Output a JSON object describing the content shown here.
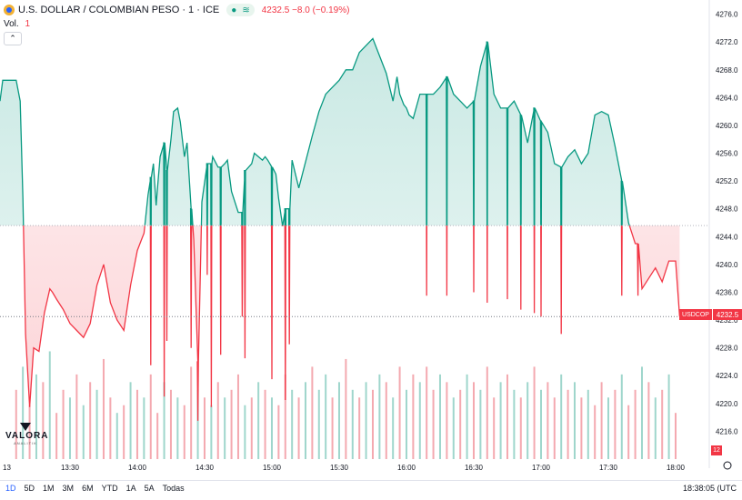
{
  "header": {
    "symbol": "U.S. DOLLAR / COLOMBIAN PESO · 1 · ICE",
    "quote": "4232.5 −8.0 (−0.19%)",
    "vol_label": "Vol.",
    "vol_value": "1",
    "collapse_glyph": "⌃"
  },
  "logo": {
    "brand": "VALORA",
    "sub": "ANALITIK"
  },
  "price_tag": {
    "symbol": "USDCOP",
    "value": "4232.5"
  },
  "volume_tag": "12",
  "bottom_bar": {
    "ranges": [
      "1D",
      "5D",
      "1M",
      "3M",
      "6M",
      "YTD",
      "1A",
      "5A",
      "Todas"
    ],
    "active": "1D",
    "clock": "18:38:05 (UTC"
  },
  "colors": {
    "up": "#089981",
    "down": "#f23645",
    "vol_up": "#9fd6cc",
    "vol_down": "#f4a9b0"
  },
  "chart_data": {
    "type": "area",
    "baseline": 4245.6,
    "ylim": [
      4212,
      4277
    ],
    "yticks": [
      4276,
      4272,
      4268,
      4264,
      4260,
      4256,
      4252,
      4248,
      4244,
      4240,
      4236,
      4232,
      4228,
      4224,
      4220,
      4216
    ],
    "y_tick_labels": [
      "4276.0",
      "4272.0",
      "4268.0",
      "4264.0",
      "4260.0",
      "4256.0",
      "4252.0",
      "4248.0",
      "4244.0",
      "4240.0",
      "4236.0",
      "4232.0",
      "4228.0",
      "4224.0",
      "4220.0",
      "4216.0"
    ],
    "xlim": [
      12.98,
      18.25
    ],
    "x_ticks": [
      12.98,
      13.5,
      14.0,
      14.5,
      15.0,
      15.5,
      16.0,
      16.5,
      17.0,
      17.5,
      18.0
    ],
    "x_tick_labels": [
      "13",
      "13:30",
      "14:00",
      "14:30",
      "15:00",
      "15:30",
      "16:00",
      "16:30",
      "17:00",
      "17:30",
      "18:00"
    ],
    "last_price": 4232.5,
    "series": [
      {
        "x": [
          12.98,
          13.0,
          13.04,
          13.1,
          13.13,
          13.15,
          13.17,
          13.2,
          13.23,
          13.27,
          13.31,
          13.35,
          13.37,
          13.4,
          13.45,
          13.5,
          13.55,
          13.6,
          13.65,
          13.7,
          13.75,
          13.8,
          13.85,
          13.9,
          13.95,
          14.0,
          14.03,
          14.05,
          14.08,
          14.1,
          14.12,
          14.14,
          14.15,
          14.17,
          14.2,
          14.22,
          14.25,
          14.27,
          14.3,
          14.32,
          14.35,
          14.37,
          14.4,
          14.42,
          14.45,
          14.48,
          14.52,
          14.56,
          14.6,
          14.65,
          14.67,
          14.7,
          14.75,
          14.8,
          14.85,
          14.87,
          14.9,
          14.93,
          14.95,
          14.97,
          15.0,
          15.03,
          15.05,
          15.08,
          15.1,
          15.15,
          15.2,
          15.3,
          15.35,
          15.4,
          15.45,
          15.5,
          15.55,
          15.6,
          15.65,
          15.7,
          15.75,
          15.8,
          15.85,
          15.9,
          15.93,
          15.95,
          15.98,
          16.0,
          16.02,
          16.05,
          16.1,
          16.15,
          16.2,
          16.25,
          16.3,
          16.35,
          16.4,
          16.45,
          16.5,
          16.55,
          16.6,
          16.65,
          16.7,
          16.75,
          16.8,
          16.85,
          16.9,
          16.95,
          17.0,
          17.05,
          17.1,
          17.15,
          17.2,
          17.25,
          17.3,
          17.35,
          17.4,
          17.45,
          17.5,
          17.55,
          17.6,
          17.65,
          17.7,
          17.75,
          17.8,
          17.85,
          17.9,
          17.95,
          18.0,
          18.03
        ],
        "y": [
          4263.5,
          4266.5,
          4266.5,
          4266.5,
          4263.5,
          4249.5,
          4230,
          4219.5,
          4228,
          4227.5,
          4233,
          4236.5,
          4236,
          4235,
          4233.5,
          4231.5,
          4230.5,
          4229.5,
          4231.5,
          4237,
          4240,
          4234.5,
          4232,
          4230.5,
          4237,
          4242,
          4243.5,
          4244.5,
          4250,
          4252.5,
          4254.5,
          4248.5,
          4251,
          4255.5,
          4257.5,
          4253.5,
          4258,
          4262,
          4262.5,
          4260.5,
          4255.5,
          4257.5,
          4248,
          4243.5,
          4226,
          4249,
          4254.5,
          4255.5,
          4254,
          4254.5,
          4255,
          4250.5,
          4247.5,
          4253.5,
          4254.5,
          4256,
          4255.5,
          4255,
          4255.5,
          4255,
          4254,
          4253,
          4249.5,
          4245.5,
          4248,
          4255,
          4251,
          4258.5,
          4262,
          4264.5,
          4265.5,
          4266.5,
          4268,
          4268,
          4270.5,
          4271.5,
          4272.5,
          4270,
          4267.5,
          4263.5,
          4267,
          4264.5,
          4263,
          4262.5,
          4261.5,
          4261,
          4264.5,
          4264.5,
          4264.5,
          4265.5,
          4267,
          4264.5,
          4263.5,
          4262.5,
          4263.5,
          4268.5,
          4272,
          4264.5,
          4262.5,
          4262.5,
          4263.5,
          4261.5,
          4257.5,
          4262.5,
          4260.5,
          4259,
          4254.5,
          4254,
          4255.5,
          4256.5,
          4254.5,
          4256,
          4261.5,
          4262,
          4261.5,
          4257,
          4252,
          4246,
          4243,
          4236.5,
          4238,
          4239.5,
          4237.5,
          4240.5,
          4240.5,
          4232.5
        ],
        "dips": [
          {
            "x": 14.1,
            "y": 4225.5
          },
          {
            "x": 14.2,
            "y": 4221
          },
          {
            "x": 14.22,
            "y": 4229
          },
          {
            "x": 14.4,
            "y": 4228
          },
          {
            "x": 14.45,
            "y": 4217.5
          },
          {
            "x": 14.52,
            "y": 4238.5
          },
          {
            "x": 14.55,
            "y": 4219.5
          },
          {
            "x": 14.62,
            "y": 4227
          },
          {
            "x": 14.78,
            "y": 4232.5
          },
          {
            "x": 14.8,
            "y": 4226.5
          },
          {
            "x": 15.0,
            "y": 4223.5
          },
          {
            "x": 15.1,
            "y": 4220.5
          },
          {
            "x": 15.13,
            "y": 4228.5
          },
          {
            "x": 16.15,
            "y": 4235.5
          },
          {
            "x": 16.3,
            "y": 4235.5
          },
          {
            "x": 16.5,
            "y": 4236
          },
          {
            "x": 16.6,
            "y": 4234.5
          },
          {
            "x": 16.75,
            "y": 4235
          },
          {
            "x": 16.85,
            "y": 4233.5
          },
          {
            "x": 16.95,
            "y": 4233
          },
          {
            "x": 17.0,
            "y": 4232.5
          },
          {
            "x": 17.15,
            "y": 4230
          },
          {
            "x": 17.6,
            "y": 4235.5
          },
          {
            "x": 17.72,
            "y": 4235.5
          }
        ]
      }
    ],
    "volume": {
      "x": [
        13.1,
        13.15,
        13.2,
        13.25,
        13.3,
        13.35,
        13.4,
        13.45,
        13.5,
        13.55,
        13.6,
        13.65,
        13.7,
        13.75,
        13.8,
        13.85,
        13.9,
        13.95,
        14.0,
        14.05,
        14.1,
        14.15,
        14.2,
        14.25,
        14.3,
        14.35,
        14.4,
        14.45,
        14.5,
        14.55,
        14.6,
        14.65,
        14.7,
        14.75,
        14.8,
        14.85,
        14.9,
        14.95,
        15.0,
        15.05,
        15.1,
        15.15,
        15.2,
        15.25,
        15.3,
        15.35,
        15.4,
        15.45,
        15.5,
        15.55,
        15.6,
        15.65,
        15.7,
        15.75,
        15.8,
        15.85,
        15.9,
        15.95,
        16.0,
        16.05,
        16.1,
        16.15,
        16.2,
        16.25,
        16.3,
        16.35,
        16.4,
        16.45,
        16.5,
        16.55,
        16.6,
        16.65,
        16.7,
        16.75,
        16.8,
        16.85,
        16.9,
        16.95,
        17.0,
        17.05,
        17.1,
        17.15,
        17.2,
        17.25,
        17.3,
        17.35,
        17.4,
        17.45,
        17.5,
        17.55,
        17.6,
        17.65,
        17.7,
        17.75,
        17.8,
        17.85,
        17.9,
        17.95,
        18.0
      ],
      "values": [
        9,
        12,
        7,
        11,
        10,
        14,
        6,
        9,
        8,
        11,
        7,
        10,
        9,
        13,
        8,
        6,
        7,
        10,
        9,
        8,
        11,
        6,
        10,
        9,
        8,
        7,
        12,
        9,
        8,
        7,
        10,
        8,
        9,
        11,
        7,
        8,
        10,
        9,
        8,
        7,
        11,
        9,
        8,
        10,
        12,
        9,
        11,
        8,
        10,
        13,
        9,
        8,
        10,
        9,
        11,
        10,
        8,
        12,
        9,
        11,
        10,
        12,
        9,
        11,
        10,
        8,
        9,
        11,
        10,
        9,
        12,
        8,
        10,
        11,
        9,
        8,
        10,
        12,
        9,
        10,
        8,
        11,
        9,
        10,
        8,
        9,
        7,
        10,
        8,
        9,
        11,
        7,
        9,
        12,
        10,
        8,
        9,
        11,
        6
      ],
      "up": [
        false,
        true,
        false,
        true,
        false,
        true,
        false,
        false,
        true,
        false,
        true,
        false,
        true,
        false,
        false,
        true,
        false,
        true,
        false,
        true,
        false,
        false,
        true,
        false,
        true,
        false,
        false,
        true,
        false,
        true,
        false,
        true,
        false,
        false,
        true,
        false,
        true,
        false,
        true,
        false,
        false,
        true,
        false,
        true,
        false,
        true,
        true,
        false,
        true,
        false,
        true,
        false,
        true,
        false,
        true,
        false,
        true,
        false,
        true,
        false,
        true,
        false,
        false,
        true,
        false,
        true,
        false,
        true,
        false,
        true,
        false,
        false,
        true,
        false,
        true,
        false,
        true,
        false,
        true,
        false,
        false,
        true,
        false,
        true,
        false,
        true,
        false,
        false,
        true,
        false,
        true,
        false,
        false,
        true,
        false,
        true,
        false,
        true,
        false
      ],
      "ylim": [
        0,
        15
      ]
    }
  }
}
